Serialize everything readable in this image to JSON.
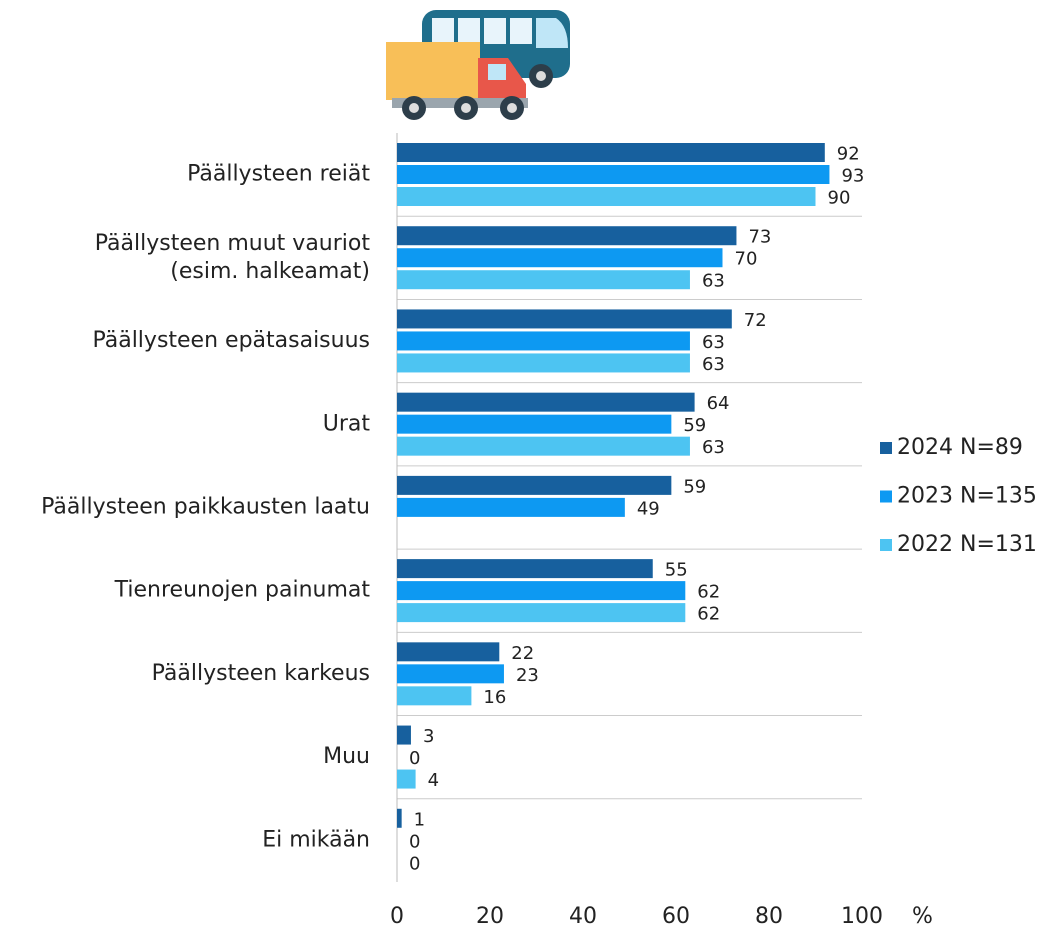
{
  "chart_data": {
    "type": "barh",
    "categories": [
      "Päällysteen reiät",
      "Päällysteen muut vauriot\n(esim. halkeamat)",
      "Päällysteen epätasaisuus",
      "Urat",
      "Päällysteen paikkausten laatu",
      "Tienreunojen painumat",
      "Päällysteen karkeus",
      "Muu",
      "Ei mikään"
    ],
    "series": [
      {
        "name": "2024 N=89",
        "color": "#17609e",
        "values": [
          92,
          73,
          72,
          64,
          59,
          55,
          22,
          3,
          1
        ]
      },
      {
        "name": "2023 N=135",
        "color": "#0d99f2",
        "values": [
          93,
          70,
          63,
          59,
          49,
          62,
          23,
          0,
          0
        ]
      },
      {
        "name": "2022 N=131",
        "color": "#4dc4f2",
        "values": [
          90,
          63,
          63,
          63,
          null,
          62,
          16,
          4,
          0
        ]
      }
    ],
    "xlim": [
      0,
      100
    ],
    "xticks": [
      0,
      20,
      40,
      60,
      80,
      100
    ],
    "xlabel": "%",
    "legend": "right"
  }
}
